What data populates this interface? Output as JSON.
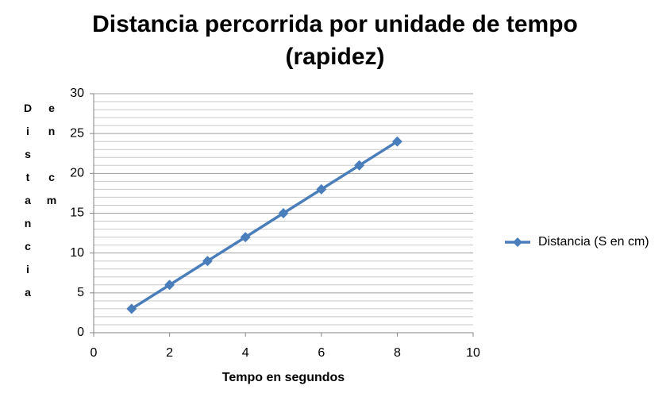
{
  "chart_data": {
    "type": "line",
    "title": "Distancia percorrida  por unidade de tempo (rapidez)",
    "x_label": "Tempo en segundos",
    "y_label": "Distancia en cm",
    "x": [
      1,
      2,
      3,
      4,
      5,
      6,
      7,
      8
    ],
    "series": [
      {
        "name": "Distancia (S en cm)",
        "color": "#4a7ebb",
        "values": [
          3,
          6,
          9,
          12,
          15,
          18,
          21,
          24
        ]
      }
    ],
    "xlim": [
      0,
      10
    ],
    "xticks": [
      0,
      2,
      4,
      6,
      8,
      10
    ],
    "ylim": [
      0,
      30
    ],
    "yticks": [
      0,
      5,
      10,
      15,
      20,
      25,
      30
    ],
    "minor_yticks": [
      1,
      2,
      3,
      4,
      6,
      7,
      8,
      9,
      11,
      12,
      13,
      14,
      16,
      17,
      18,
      19,
      21,
      22,
      23,
      24,
      26,
      27,
      28,
      29
    ],
    "grid": true,
    "legend": "right"
  }
}
